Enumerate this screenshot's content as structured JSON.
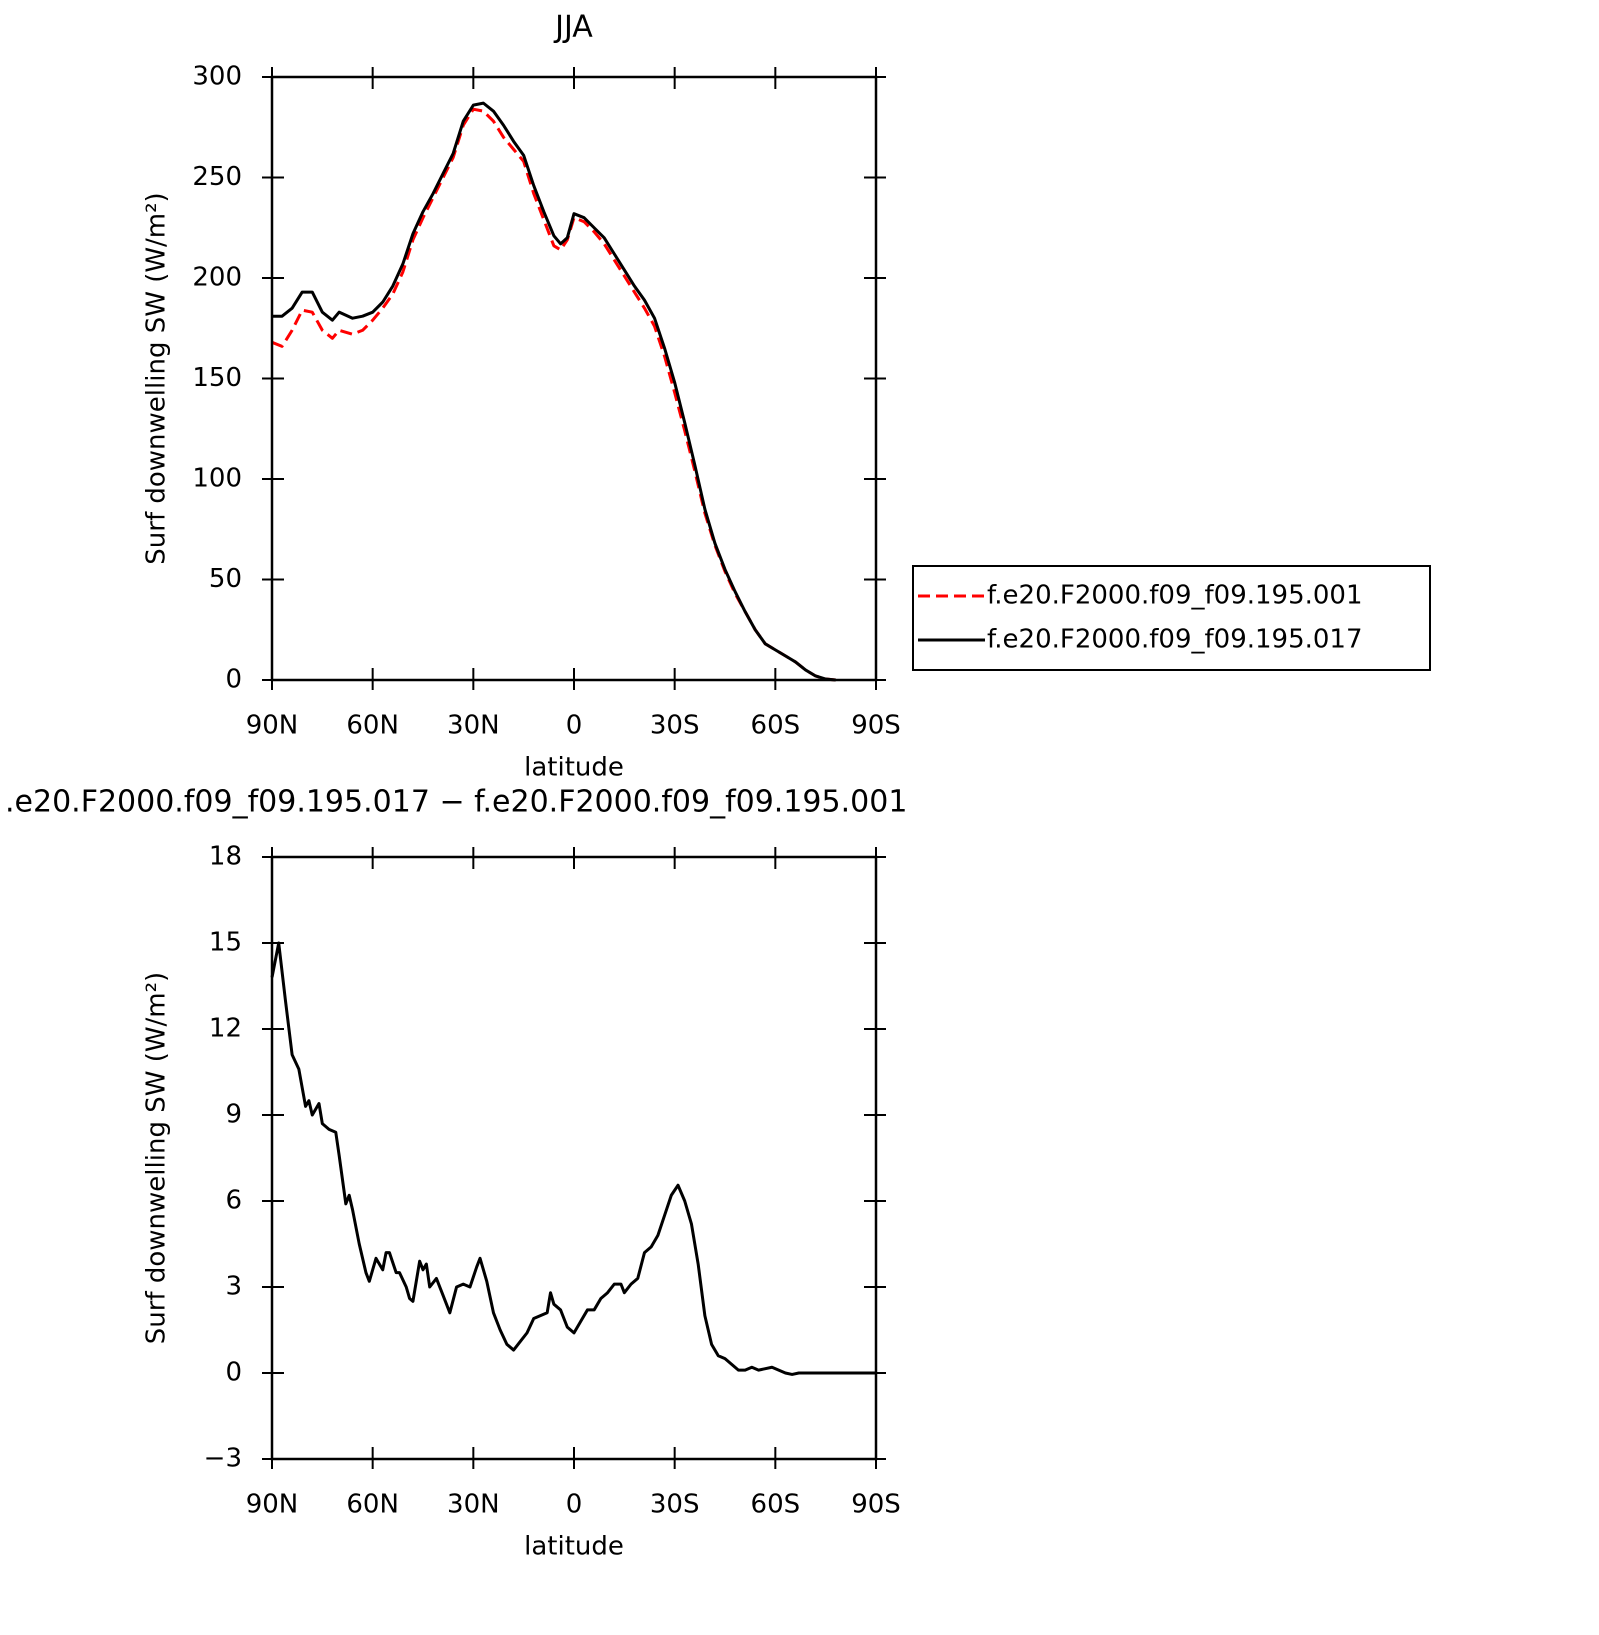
{
  "chart_data": [
    {
      "type": "line",
      "title": "JJA",
      "x_label": "latitude",
      "y_label": "Surf downwelling SW (W/m²)",
      "x": [
        90,
        87,
        84,
        81,
        78,
        75,
        72,
        70,
        66,
        63,
        60,
        57,
        54,
        51,
        48,
        45,
        42,
        39,
        36,
        33,
        30,
        27,
        24,
        21,
        18,
        15,
        12,
        9,
        6,
        4,
        2,
        0,
        -3,
        -6,
        -9,
        -12,
        -15,
        -18,
        -21,
        -24,
        -27,
        -30,
        -33,
        -36,
        -39,
        -42,
        -45,
        -48,
        -51,
        -54,
        -57,
        -60,
        -63,
        -66,
        -69,
        -72,
        -75,
        -78
      ],
      "series": [
        {
          "name": "f.e20.F2000.f09_f09.195.001",
          "color": "#ff0000",
          "style": "dashed",
          "values": [
            168,
            166,
            174,
            184,
            183,
            174,
            170,
            174,
            172,
            174,
            179,
            185,
            192,
            203,
            219,
            230,
            240,
            250,
            260,
            276,
            284,
            283,
            278,
            270,
            264,
            258,
            242,
            229,
            216,
            214,
            219,
            230,
            228,
            223,
            217,
            209,
            201,
            193,
            185,
            176,
            161,
            143,
            124,
            104,
            83,
            67,
            54,
            43,
            34,
            25,
            18,
            15,
            12,
            9,
            5,
            2,
            0.5,
            0
          ]
        },
        {
          "name": "f.e20.F2000.f09_f09.195.017",
          "color": "#000000",
          "style": "solid",
          "values": [
            181,
            181,
            185,
            193,
            193,
            183,
            179,
            183,
            180,
            181,
            183,
            188,
            196,
            207,
            222,
            233,
            242,
            252,
            262,
            278,
            286,
            287,
            283,
            276,
            268,
            261,
            246,
            233,
            221,
            217,
            220,
            232,
            230,
            225,
            220,
            212,
            204,
            196,
            189,
            180,
            165,
            148,
            128,
            107,
            85,
            68,
            55,
            44,
            34,
            25,
            18,
            15,
            12,
            9,
            5,
            2,
            0.5,
            0
          ]
        }
      ],
      "xlim": [
        90,
        -90
      ],
      "xticks": [
        {
          "value": 90,
          "label": "90N"
        },
        {
          "value": 60,
          "label": "60N"
        },
        {
          "value": 30,
          "label": "30N"
        },
        0,
        {
          "value": -30,
          "label": "30S"
        },
        {
          "value": -60,
          "label": "60S"
        },
        {
          "value": -90,
          "label": "90S"
        }
      ],
      "ylim": [
        0,
        300
      ],
      "yticks": [
        0,
        50,
        100,
        150,
        200,
        250,
        300
      ],
      "legend": "right"
    },
    {
      "type": "line",
      "title": ".e20.F2000.f09_f09.195.017 − f.e20.F2000.f09_f09.195.001",
      "x_label": "latitude",
      "y_label": "Surf downwelling SW (W/m²)",
      "x": [
        90,
        88,
        86,
        84,
        82,
        80,
        79,
        78,
        76,
        75,
        73,
        71,
        70,
        68,
        67,
        66,
        64,
        62,
        61,
        59,
        57,
        56,
        55,
        53,
        52,
        50,
        49,
        48,
        46,
        45,
        44,
        43,
        41,
        39,
        37,
        35,
        33,
        31,
        29,
        28,
        26,
        24,
        22,
        20,
        18,
        16,
        14,
        12,
        10,
        8,
        7,
        6,
        4,
        2,
        0,
        -2,
        -4,
        -6,
        -8,
        -10,
        -12,
        -14,
        -15,
        -17,
        -19,
        -21,
        -23,
        -25,
        -27,
        -29,
        -31,
        -33,
        -35,
        -37,
        -39,
        -41,
        -43,
        -45,
        -47,
        -49,
        -51,
        -53,
        -55,
        -57,
        -59,
        -61,
        -63,
        -65,
        -67,
        -70,
        -75,
        -80,
        -85,
        -90
      ],
      "series": [
        {
          "name": "diff",
          "color": "#000000",
          "style": "solid",
          "values": [
            13.8,
            15.0,
            13.0,
            11.1,
            10.6,
            9.3,
            9.5,
            9.0,
            9.4,
            8.7,
            8.5,
            8.4,
            7.6,
            5.9,
            6.2,
            5.7,
            4.5,
            3.5,
            3.2,
            4.0,
            3.6,
            4.2,
            4.2,
            3.5,
            3.5,
            3.0,
            2.6,
            2.5,
            3.9,
            3.6,
            3.8,
            3.0,
            3.3,
            2.7,
            2.1,
            3.0,
            3.1,
            3.0,
            3.7,
            4.0,
            3.2,
            2.1,
            1.5,
            1.0,
            0.8,
            1.1,
            1.4,
            1.9,
            2.0,
            2.1,
            2.8,
            2.4,
            2.2,
            1.6,
            1.4,
            1.8,
            2.2,
            2.2,
            2.6,
            2.8,
            3.1,
            3.1,
            2.8,
            3.1,
            3.3,
            4.2,
            4.4,
            4.8,
            5.5,
            6.2,
            6.55,
            6.0,
            5.2,
            3.8,
            2.0,
            1.0,
            0.6,
            0.5,
            0.3,
            0.1,
            0.1,
            0.2,
            0.1,
            0.15,
            0.2,
            0.1,
            0.0,
            -0.05,
            0,
            0,
            0,
            0,
            0,
            0
          ]
        }
      ],
      "xlim": [
        90,
        -90
      ],
      "xticks": [
        {
          "value": 90,
          "label": "90N"
        },
        {
          "value": 60,
          "label": "60N"
        },
        {
          "value": 30,
          "label": "30N"
        },
        0,
        {
          "value": -30,
          "label": "30S"
        },
        {
          "value": -60,
          "label": "60S"
        },
        {
          "value": -90,
          "label": "90S"
        }
      ],
      "ylim": [
        -3,
        18
      ],
      "yticks": [
        {
          "value": -3,
          "label": "−3"
        },
        0,
        3,
        6,
        9,
        12,
        15,
        18
      ]
    }
  ]
}
